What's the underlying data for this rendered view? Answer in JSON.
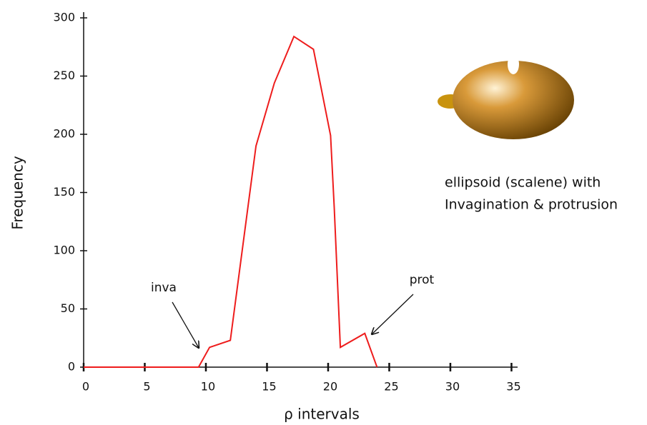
{
  "chart_data": {
    "type": "line",
    "x_label": "ρ  intervals",
    "y_label": "Frequency",
    "x": [
      0,
      9.4,
      10.3,
      12.0,
      14.1,
      15.6,
      17.2,
      18.8,
      20.2,
      20.5,
      21.0,
      23.0,
      24.0
    ],
    "series": [
      {
        "color": "#ee1c1c",
        "values": [
          0,
          0,
          17,
          23,
          190,
          244,
          284,
          273,
          199,
          137,
          17,
          29,
          0
        ]
      }
    ],
    "xlim": [
      0,
      35.5
    ],
    "xticks": [
      0,
      5,
      10,
      15,
      20,
      25,
      30,
      35
    ],
    "ylim": [
      0,
      300
    ],
    "yticks": [
      0,
      50,
      100,
      150,
      200,
      250,
      300
    ],
    "annotations": [
      "inva",
      "prot"
    ],
    "description": [
      "ellipsoid (scalene) with",
      "Invagination & protrusion"
    ]
  }
}
